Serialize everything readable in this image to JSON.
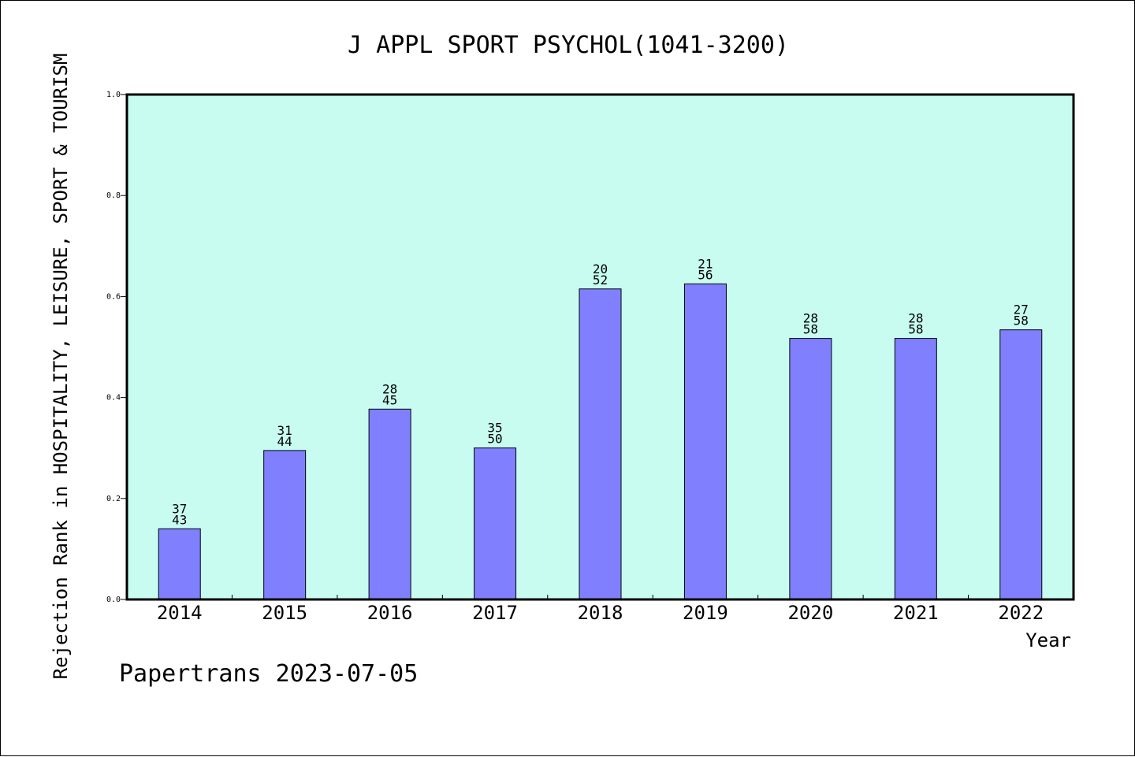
{
  "chart_data": {
    "type": "bar",
    "title": "J APPL SPORT PSYCHOL(1041-3200)",
    "xlabel": "Year",
    "ylabel": "Rejection Rank in HOSPITALITY, LEISURE, SPORT & TOURISM",
    "ylim": [
      0,
      1.0
    ],
    "yticks": [
      "0.0",
      "0.2",
      "0.4",
      "0.6",
      "0.8",
      "1.0"
    ],
    "categories": [
      "2014",
      "2015",
      "2016",
      "2017",
      "2018",
      "2019",
      "2020",
      "2021",
      "2022"
    ],
    "values": [
      0.14,
      0.295,
      0.377,
      0.3,
      0.615,
      0.625,
      0.517,
      0.517,
      0.534
    ],
    "bar_labels": [
      [
        "37",
        "43"
      ],
      [
        "31",
        "44"
      ],
      [
        "28",
        "45"
      ],
      [
        "35",
        "50"
      ],
      [
        "20",
        "52"
      ],
      [
        "21",
        "56"
      ],
      [
        "28",
        "58"
      ],
      [
        "28",
        "58"
      ],
      [
        "27",
        "58"
      ]
    ],
    "grid": false,
    "plot_background": "#c8fcf0",
    "bar_color": "#8080ff",
    "footer": "Papertrans 2023-07-05"
  }
}
